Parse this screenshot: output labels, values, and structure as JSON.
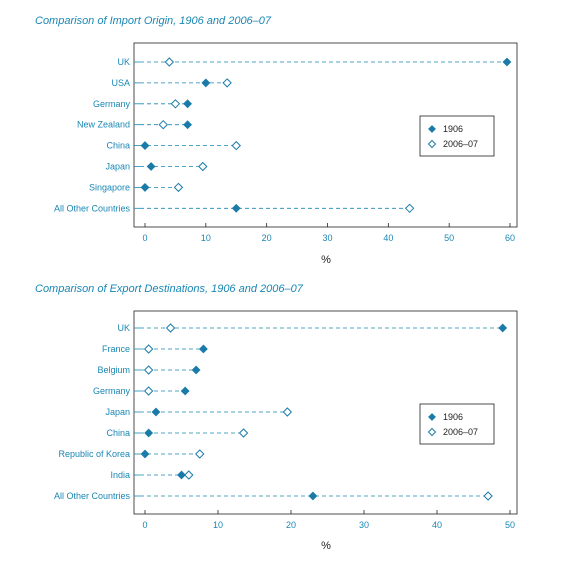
{
  "colors": {
    "accent": "#1a87b4",
    "marker": "#1b7ba8",
    "frame": "#222222"
  },
  "chart_data": [
    {
      "type": "scatter",
      "title": "Comparison of Import Origin, 1906 and 2006–07",
      "xlabel": "%",
      "ylabel": "",
      "xlim": [
        -1.5,
        61.5
      ],
      "xticks": [
        0,
        10,
        20,
        30,
        40,
        50,
        60
      ],
      "categories": [
        "UK",
        "USA",
        "Germany",
        "New Zealand",
        "China",
        "Japan",
        "Singapore",
        "All Other Countries"
      ],
      "series": [
        {
          "name": "1906",
          "marker": "filled-diamond",
          "values": [
            59.5,
            10,
            7,
            7,
            0,
            1,
            0,
            15
          ]
        },
        {
          "name": "2006–07",
          "marker": "open-diamond",
          "values": [
            4,
            13.5,
            5,
            3,
            15,
            9.5,
            5.5,
            43.5
          ]
        }
      ],
      "legend": "right"
    },
    {
      "type": "scatter",
      "title": "Comparison of Export Destinations, 1906 and 2006–07",
      "xlabel": "%",
      "ylabel": "",
      "xlim": [
        -1.5,
        51.5
      ],
      "xticks": [
        0,
        10,
        20,
        30,
        40,
        50
      ],
      "categories": [
        "UK",
        "France",
        "Belgium",
        "Germany",
        "Japan",
        "China",
        "Republic of Korea",
        "India",
        "All Other Countries"
      ],
      "series": [
        {
          "name": "1906",
          "marker": "filled-diamond",
          "values": [
            49,
            8,
            7,
            5.5,
            1.5,
            0.5,
            0,
            5,
            23
          ]
        },
        {
          "name": "2006–07",
          "marker": "open-diamond",
          "values": [
            3.5,
            0.5,
            0.5,
            0.5,
            19.5,
            13.5,
            7.5,
            6,
            47
          ]
        }
      ],
      "legend": "right"
    }
  ]
}
